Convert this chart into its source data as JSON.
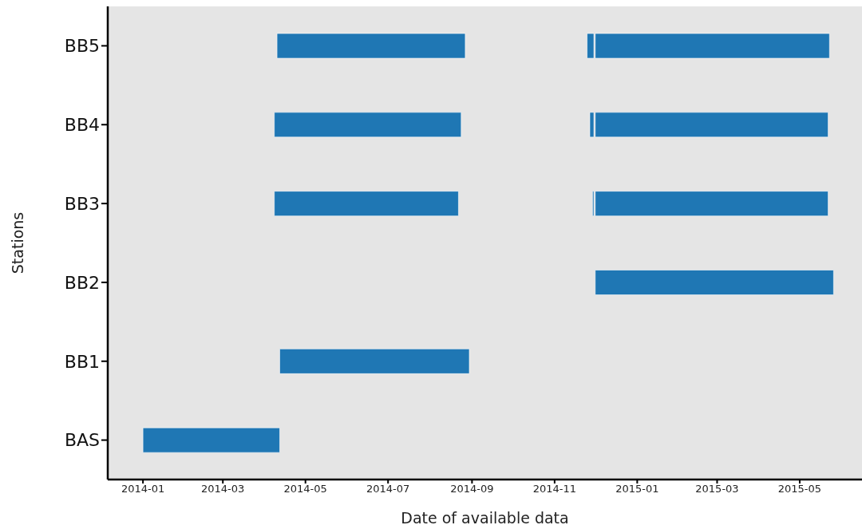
{
  "chart_data": {
    "type": "bar",
    "orientation": "horizontal",
    "xlabel": "Date of available data",
    "ylabel": "Stations",
    "categories": [
      "BB5",
      "BB4",
      "BB3",
      "BB2",
      "BB1",
      "BAS"
    ],
    "series": [
      {
        "color": "#1f77b4",
        "base": [
          16170,
          16168,
          16168,
          null,
          16172,
          16071
        ],
        "values": [
          139,
          138,
          136,
          null,
          140,
          101
        ]
      },
      {
        "color": "#1f77b4",
        "base": [
          16399,
          16401,
          16403,
          null,
          null,
          null
        ],
        "values": [
          5,
          3,
          1,
          null,
          null,
          null
        ]
      },
      {
        "color": "#1f77b4",
        "base": [
          16405,
          16405,
          16405,
          16405,
          null,
          null
        ],
        "values": [
          173,
          172,
          172,
          176,
          null,
          null
        ]
      }
    ],
    "xlim": [
      "2013-12-06",
      "2015-06-16"
    ],
    "xticks": [
      "2014-01",
      "2014-03",
      "2014-05",
      "2014-07",
      "2014-09",
      "2014-11",
      "2015-01",
      "2015-03",
      "2015-05"
    ],
    "grid": false
  }
}
